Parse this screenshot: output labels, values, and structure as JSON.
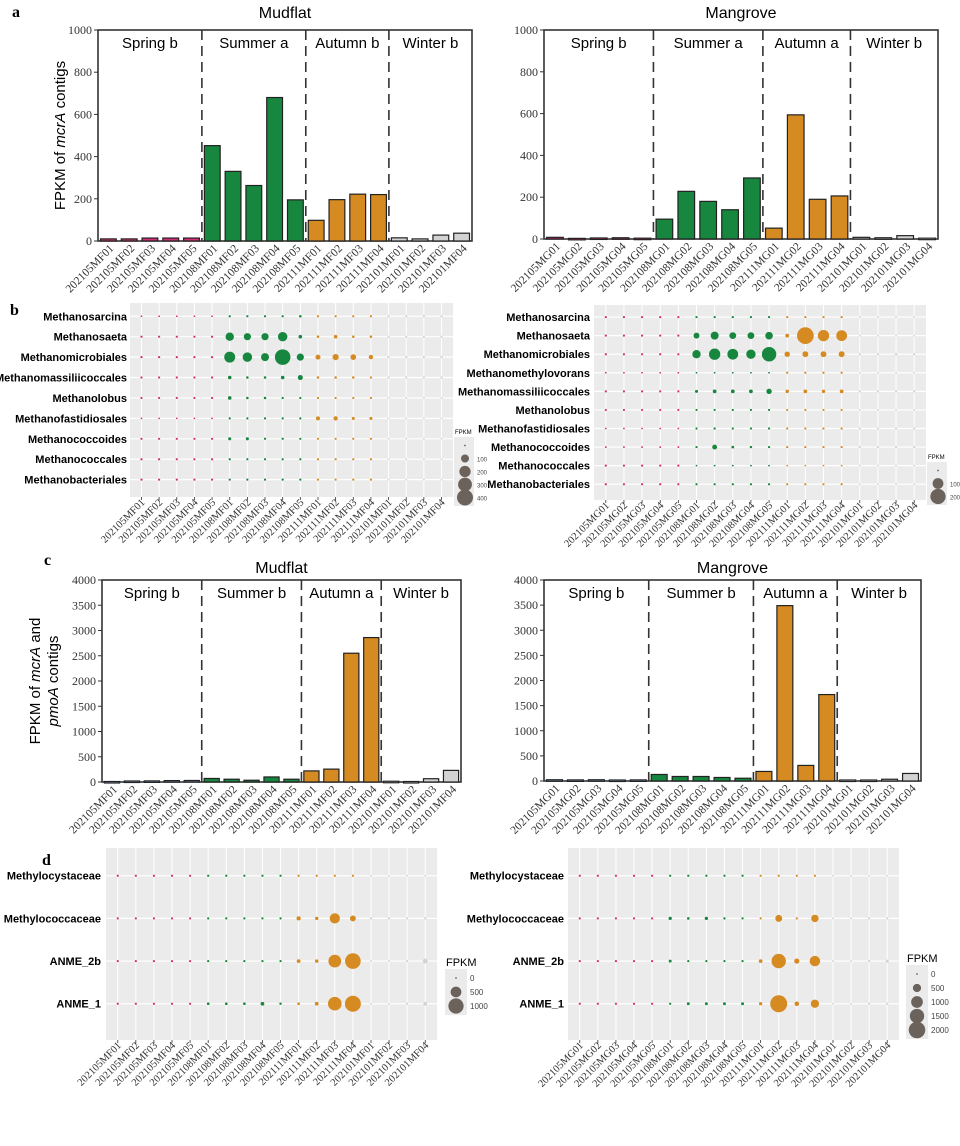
{
  "panel_labels": [
    "a",
    "b",
    "c",
    "d"
  ],
  "colors": {
    "Spring": "#D62D7A",
    "Summer": "#17863E",
    "Autumn": "#D68A22",
    "Winter": "#D3D3D3",
    "SpringC": "#7FA0D6",
    "legend_dot": "#6B625C",
    "panel_bg": "#EBEBEB"
  },
  "chart_data": [
    {
      "id": "a-mudflat",
      "panel": "a",
      "type": "bar",
      "title": "Mudflat",
      "xlabel": "",
      "ylabel": "FPKM of mcrA contigs",
      "ylabel_parts": [
        "FPKM of ",
        "mcrA",
        " contigs"
      ],
      "ylim": [
        0,
        1000
      ],
      "yticks": [
        0,
        200,
        400,
        600,
        800,
        1000
      ],
      "grid": false,
      "seasons": [
        {
          "label": "Spring b",
          "season": "Spring",
          "count": 5
        },
        {
          "label": "Summer a",
          "season": "Summer",
          "count": 5
        },
        {
          "label": "Autumn b",
          "season": "Autumn",
          "count": 4
        },
        {
          "label": "Winter b",
          "season": "Winter",
          "count": 4
        }
      ],
      "categories": [
        "202105MF01",
        "202105MF02",
        "202105MF03",
        "202105MF04",
        "202105MF05",
        "202108MF01",
        "202108MF02",
        "202108MF03",
        "202108MF04",
        "202108MF05",
        "202111MF01",
        "202111MF02",
        "202111MF03",
        "202111MF04",
        "202101MF01",
        "202101MF02",
        "202101MF03",
        "202101MF04"
      ],
      "values": [
        10,
        10,
        14,
        14,
        14,
        452,
        330,
        263,
        680,
        195,
        98,
        196,
        222,
        220,
        15,
        10,
        28,
        37
      ]
    },
    {
      "id": "a-mangrove",
      "panel": "a",
      "type": "bar",
      "title": "Mangrove",
      "xlabel": "",
      "ylabel": "",
      "ylim": [
        0,
        1000
      ],
      "yticks": [
        0,
        200,
        400,
        600,
        800,
        1000
      ],
      "grid": false,
      "seasons": [
        {
          "label": "Spring b",
          "season": "Spring",
          "count": 5
        },
        {
          "label": "Summer a",
          "season": "Summer",
          "count": 5
        },
        {
          "label": "Autumn a",
          "season": "Autumn",
          "count": 4
        },
        {
          "label": "Winter b",
          "season": "Winter",
          "count": 4
        }
      ],
      "categories": [
        "202105MG01",
        "202105MG02",
        "202105MG03",
        "202105MG04",
        "202105MG05",
        "202108MG01",
        "202108MG02",
        "202108MG03",
        "202108MG04",
        "202108MG05",
        "202111MG01",
        "202111MG02",
        "202111MG03",
        "202111MG04",
        "202101MG01",
        "202101MG02",
        "202101MG03",
        "202101MG04"
      ],
      "values": [
        8,
        3,
        5,
        6,
        4,
        95,
        228,
        180,
        140,
        292,
        52,
        594,
        190,
        206,
        8,
        6,
        16,
        4
      ]
    },
    {
      "id": "b-mudflat",
      "panel": "b",
      "type": "scatter",
      "title": "",
      "xlabel": "",
      "ylabel": "",
      "rows": [
        "Methanosarcina",
        "Methanosaeta",
        "Methanomicrobiales",
        "Methanomassiliicoccales",
        "Methanolobus",
        "Methanofastidiosales",
        "Methanococcoides",
        "Methanococcales",
        "Methanobacteriales"
      ],
      "categories": [
        "202105MF01",
        "202105MF02",
        "202105MF03",
        "202105MF04",
        "202105MF05",
        "202108MF01",
        "202108MF02",
        "202108MF03",
        "202108MF04",
        "202108MF05",
        "202111MF01",
        "202111MF02",
        "202111MF03",
        "202111MF04",
        "202101MF01",
        "202101MF02",
        "202101MF03",
        "202101MF04"
      ],
      "seasons_by_col": [
        "Spring",
        "Spring",
        "Spring",
        "Spring",
        "Spring",
        "Summer",
        "Summer",
        "Summer",
        "Summer",
        "Summer",
        "Autumn",
        "Autumn",
        "Autumn",
        "Autumn",
        "Winter",
        "Winter",
        "Winter",
        "Winter"
      ],
      "size_max": 450,
      "values": [
        [
          0,
          0,
          0,
          0,
          0,
          4,
          4,
          4,
          4,
          10,
          4,
          4,
          4,
          4,
          1,
          1,
          1,
          1
        ],
        [
          4,
          4,
          4,
          4,
          4,
          110,
          80,
          80,
          140,
          20,
          10,
          20,
          10,
          10,
          1,
          1,
          1,
          1
        ],
        [
          8,
          8,
          8,
          8,
          8,
          190,
          140,
          100,
          380,
          80,
          40,
          60,
          50,
          30,
          3,
          3,
          5,
          5
        ],
        [
          4,
          4,
          4,
          4,
          4,
          20,
          10,
          10,
          20,
          40,
          10,
          10,
          10,
          5,
          1,
          1,
          1,
          1
        ],
        [
          1,
          1,
          1,
          1,
          1,
          20,
          10,
          10,
          8,
          5,
          2,
          2,
          2,
          2,
          0,
          0,
          0,
          0
        ],
        [
          0,
          0,
          0,
          0,
          0,
          2,
          2,
          2,
          1,
          2,
          25,
          30,
          15,
          15,
          0,
          0,
          0,
          0
        ],
        [
          2,
          2,
          2,
          2,
          2,
          15,
          15,
          8,
          8,
          4,
          2,
          2,
          2,
          3,
          0,
          0,
          0,
          0
        ],
        [
          1,
          1,
          1,
          1,
          1,
          2,
          2,
          2,
          2,
          2,
          2,
          2,
          2,
          2,
          0,
          0,
          0,
          0
        ],
        [
          1,
          1,
          1,
          1,
          1,
          2,
          2,
          2,
          2,
          2,
          2,
          2,
          2,
          3,
          0,
          0,
          0,
          0
        ]
      ],
      "legend": {
        "title": "FPKM",
        "breaks": [
          0,
          100,
          200,
          300,
          400
        ],
        "labels": [
          "",
          "100",
          "200",
          "300",
          "400"
        ],
        "position": "right"
      }
    },
    {
      "id": "b-mangrove",
      "panel": "b",
      "type": "scatter",
      "title": "",
      "xlabel": "",
      "ylabel": "",
      "rows": [
        "Methanosarcina",
        "Methanosaeta",
        "Methanomicrobiales",
        "Methanomethylovorans",
        "Methanomassiliicoccales",
        "Methanolobus",
        "Methanofastidiosales",
        "Methanococcoides",
        "Methanococcales",
        "Methanobacteriales"
      ],
      "categories": [
        "202105MG01",
        "202105MG02",
        "202105MG03",
        "202105MG04",
        "202105MG05",
        "202108MG01",
        "202108MG02",
        "202108MG03",
        "202108MG04",
        "202108MG05",
        "202111MG01",
        "202111MG02",
        "202111MG03",
        "202111MG04",
        "202101MG01",
        "202101MG02",
        "202101MG03",
        "202101MG04"
      ],
      "seasons_by_col": [
        "Spring",
        "Spring",
        "Spring",
        "Spring",
        "Spring",
        "Summer",
        "Summer",
        "Summer",
        "Summer",
        "Summer",
        "Autumn",
        "Autumn",
        "Autumn",
        "Autumn",
        "Winter",
        "Winter",
        "Winter",
        "Winter"
      ],
      "size_max": 260,
      "values": [
        [
          2,
          2,
          2,
          2,
          2,
          3,
          3,
          3,
          2,
          2,
          4,
          4,
          4,
          4,
          0,
          0,
          0,
          0
        ],
        [
          2,
          2,
          2,
          2,
          1,
          30,
          55,
          40,
          40,
          50,
          12,
          240,
          110,
          100,
          0,
          0,
          0,
          0
        ],
        [
          3,
          3,
          3,
          4,
          3,
          60,
          110,
          100,
          75,
          180,
          25,
          30,
          30,
          30,
          2,
          2,
          5,
          2
        ],
        [
          0,
          0,
          0,
          0,
          0,
          0,
          0,
          0,
          0,
          0,
          2,
          2,
          2,
          2,
          0,
          0,
          0,
          0
        ],
        [
          4,
          3,
          3,
          4,
          3,
          8,
          12,
          12,
          12,
          25,
          10,
          12,
          10,
          12,
          1,
          1,
          2,
          1
        ],
        [
          1,
          1,
          2,
          1,
          1,
          3,
          3,
          3,
          2,
          3,
          3,
          3,
          3,
          3,
          0,
          0,
          0,
          0
        ],
        [
          0,
          0,
          0,
          0,
          0,
          2,
          2,
          2,
          2,
          2,
          3,
          3,
          3,
          3,
          1,
          1,
          1,
          1
        ],
        [
          0,
          0,
          0,
          0,
          0,
          3,
          20,
          6,
          5,
          4,
          4,
          3,
          3,
          3,
          1,
          1,
          1,
          2
        ],
        [
          2,
          2,
          2,
          3,
          2,
          0,
          0,
          0,
          0,
          0,
          0,
          0,
          0,
          0,
          0,
          0,
          0,
          0
        ],
        [
          2,
          2,
          2,
          2,
          2,
          2,
          2,
          2,
          2,
          2,
          3,
          3,
          3,
          3,
          0,
          0,
          0,
          0
        ]
      ],
      "legend": {
        "title": "FPKM",
        "breaks": [
          0,
          100,
          200
        ],
        "labels": [
          "",
          "100",
          "200"
        ],
        "position": "right"
      }
    },
    {
      "id": "c-mudflat",
      "panel": "c",
      "type": "bar",
      "title": "Mudflat",
      "xlabel": "",
      "ylabel": "FPKM of mcrA and pmoA contigs",
      "ylabel_line1": [
        "FPKM of ",
        "mcrA",
        " and"
      ],
      "ylabel_line2": [
        "",
        "pmoA",
        " contigs"
      ],
      "ylim": [
        0,
        4000
      ],
      "yticks": [
        0,
        500,
        1000,
        1500,
        2000,
        2500,
        3000,
        3500,
        4000
      ],
      "grid": false,
      "seasons": [
        {
          "label": "Spring b",
          "season": "SpringC",
          "count": 5
        },
        {
          "label": "Summer b",
          "season": "Summer",
          "count": 5
        },
        {
          "label": "Autumn a",
          "season": "Autumn",
          "count": 4
        },
        {
          "label": "Winter b",
          "season": "Winter",
          "count": 4
        }
      ],
      "categories": [
        "202105MF01",
        "202105MF02",
        "202105MF03",
        "202105MF04",
        "202105MF05",
        "202108MF01",
        "202108MF02",
        "202108MF03",
        "202108MF04",
        "202108MF05",
        "202111MF01",
        "202111MF02",
        "202111MF03",
        "202111MF04",
        "202101MF01",
        "202101MF02",
        "202101MF03",
        "202101MF04"
      ],
      "values": [
        10,
        20,
        22,
        28,
        30,
        70,
        55,
        35,
        100,
        55,
        220,
        255,
        2550,
        2860,
        15,
        10,
        65,
        230
      ]
    },
    {
      "id": "c-mangrove",
      "panel": "c",
      "type": "bar",
      "title": "Mangrove",
      "xlabel": "",
      "ylabel": "",
      "ylim": [
        0,
        4000
      ],
      "yticks": [
        0,
        500,
        1000,
        1500,
        2000,
        2500,
        3000,
        3500,
        4000
      ],
      "grid": false,
      "seasons": [
        {
          "label": "Spring b",
          "season": "SpringC",
          "count": 5
        },
        {
          "label": "Summer b",
          "season": "Summer",
          "count": 5
        },
        {
          "label": "Autumn a",
          "season": "Autumn",
          "count": 4
        },
        {
          "label": "Winter b",
          "season": "Winter",
          "count": 4
        }
      ],
      "categories": [
        "202105MG01",
        "202105MG02",
        "202105MG03",
        "202105MG04",
        "202105MG05",
        "202108MG01",
        "202108MG02",
        "202108MG03",
        "202108MG04",
        "202108MG05",
        "202111MG01",
        "202111MG02",
        "202111MG03",
        "202111MG04",
        "202101MG01",
        "202101MG02",
        "202101MG03",
        "202101MG04"
      ],
      "values": [
        25,
        22,
        25,
        20,
        22,
        130,
        90,
        90,
        70,
        55,
        190,
        3490,
        310,
        1720,
        20,
        20,
        35,
        150
      ]
    },
    {
      "id": "d-mudflat",
      "panel": "d",
      "type": "scatter",
      "title": "",
      "xlabel": "",
      "ylabel": "",
      "rows": [
        "Methylocystaceae",
        "Methylococcaceae",
        "ANME_2b",
        "ANME_1"
      ],
      "categories": [
        "202105MF01",
        "202105MF02",
        "202105MF03",
        "202105MF04",
        "202105MF05",
        "202108MF01",
        "202108MF02",
        "202108MF03",
        "202108MF04",
        "202108MF05",
        "202111MF01",
        "202111MF02",
        "202111MF03",
        "202111MF04",
        "202101MF01",
        "202101MF02",
        "202101MF03",
        "202101MF04"
      ],
      "seasons_by_col": [
        "Spring",
        "Spring",
        "Spring",
        "Spring",
        "Spring",
        "Summer",
        "Summer",
        "Summer",
        "Summer",
        "Summer",
        "Autumn",
        "Autumn",
        "Autumn",
        "Autumn",
        "Winter",
        "Winter",
        "Winter",
        "Winter"
      ],
      "size_max": 1300,
      "values": [
        [
          2,
          2,
          2,
          2,
          2,
          5,
          5,
          5,
          5,
          5,
          15,
          15,
          10,
          10,
          0,
          0,
          0,
          0
        ],
        [
          10,
          15,
          10,
          15,
          15,
          20,
          20,
          10,
          15,
          15,
          80,
          50,
          450,
          150,
          2,
          2,
          5,
          2
        ],
        [
          5,
          5,
          5,
          10,
          15,
          10,
          10,
          10,
          20,
          20,
          60,
          50,
          700,
          1050,
          0,
          0,
          5,
          100
        ],
        [
          5,
          5,
          5,
          10,
          5,
          30,
          30,
          30,
          60,
          25,
          30,
          60,
          800,
          1100,
          0,
          0,
          5,
          60
        ]
      ],
      "legend": {
        "title": "FPKM",
        "breaks": [
          0,
          500,
          1000
        ],
        "labels": [
          "0",
          "500",
          "1000"
        ],
        "position": "right"
      }
    },
    {
      "id": "d-mangrove",
      "panel": "d",
      "type": "scatter",
      "title": "",
      "xlabel": "",
      "ylabel": "",
      "rows": [
        "Methylocystaceae",
        "Methylococcaceae",
        "ANME_2b",
        "ANME_1"
      ],
      "categories": [
        "202105MG01",
        "202105MG02",
        "202105MG03",
        "202105MG04",
        "202105MG05",
        "202108MG01",
        "202108MG02",
        "202108MG03",
        "202108MG04",
        "202108MG05",
        "202111MG01",
        "202111MG02",
        "202111MG03",
        "202111MG04",
        "202101MG01",
        "202101MG02",
        "202101MG03",
        "202101MG04"
      ],
      "seasons_by_col": [
        "Spring",
        "Spring",
        "Spring",
        "Spring",
        "Spring",
        "Summer",
        "Summer",
        "Summer",
        "Summer",
        "Summer",
        "Autumn",
        "Autumn",
        "Autumn",
        "Autumn",
        "Winter",
        "Winter",
        "Winter",
        "Winter"
      ],
      "size_max": 2200,
      "values": [
        [
          5,
          5,
          5,
          5,
          5,
          5,
          5,
          5,
          5,
          5,
          15,
          10,
          15,
          15,
          0,
          0,
          0,
          0
        ],
        [
          20,
          20,
          30,
          20,
          30,
          80,
          50,
          80,
          40,
          30,
          30,
          350,
          30,
          400,
          0,
          0,
          5,
          5
        ],
        [
          10,
          10,
          10,
          10,
          10,
          60,
          20,
          20,
          20,
          20,
          100,
          1500,
          200,
          800,
          0,
          0,
          20,
          60
        ],
        [
          10,
          10,
          10,
          10,
          10,
          25,
          60,
          60,
          60,
          60,
          80,
          2100,
          150,
          500,
          0,
          0,
          20,
          30
        ]
      ],
      "legend": {
        "title": "FPKM",
        "breaks": [
          0,
          500,
          1000,
          1500,
          2000
        ],
        "labels": [
          "0",
          "500",
          "1000",
          "1500",
          "2000"
        ],
        "position": "right"
      }
    }
  ]
}
